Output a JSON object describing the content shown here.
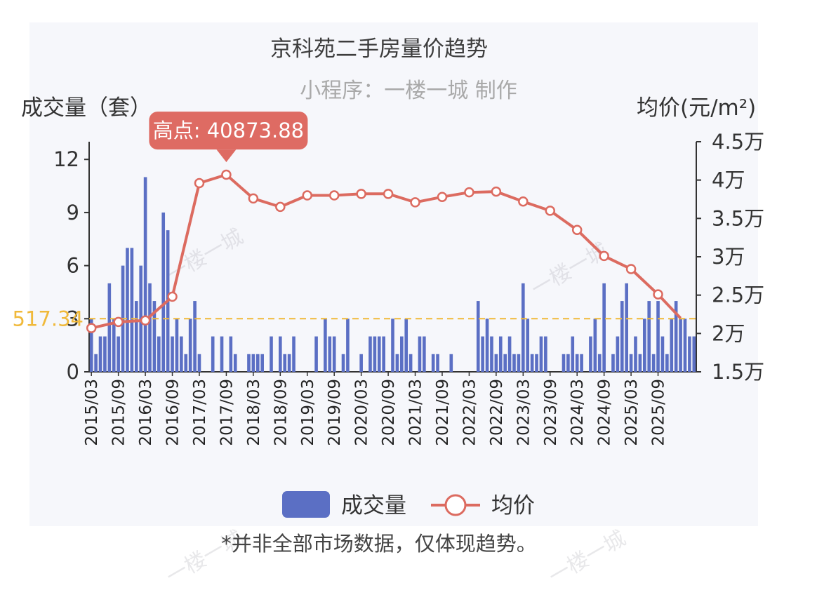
{
  "title": "京科苑二手房量价趋势",
  "subtitle": "小程序：一楼一城 制作",
  "footnote": "*并非全部市场数据，仅体现趋势。",
  "watermark": "一楼一城",
  "colors": {
    "bar": "#5b6fc4",
    "line": "#dc6b60",
    "callout": "#de6b63",
    "refline": "#f0b93a",
    "card": "#f6f7fb"
  },
  "chart_data": {
    "type": "bar+line",
    "title": "京科苑二手房量价趋势",
    "left_axis": {
      "label": "成交量（套）",
      "ticks": [
        0,
        3,
        6,
        9,
        12
      ],
      "ylim": [
        0,
        13
      ]
    },
    "right_axis": {
      "label": "均价(元/m²)",
      "ticks": [
        {
          "value": 15000,
          "label": "1.5万"
        },
        {
          "value": 20000,
          "label": "2万"
        },
        {
          "value": 25000,
          "label": "2.5万"
        },
        {
          "value": 30000,
          "label": "3万"
        },
        {
          "value": 35000,
          "label": "3.5万"
        },
        {
          "value": 40000,
          "label": "4万"
        },
        {
          "value": 45000,
          "label": "4.5万"
        }
      ],
      "ylim": [
        15000,
        45000
      ]
    },
    "x_labels": [
      "2015/03",
      "2015/09",
      "2016/03",
      "2016/09",
      "2017/03",
      "2017/09",
      "2018/03",
      "2018/09",
      "2019/03",
      "2019/09",
      "2020/03",
      "2020/09",
      "2021/03",
      "2021/09",
      "2022/03",
      "2022/09",
      "2023/03",
      "2023/09",
      "2024/03",
      "2024/09",
      "2025/03",
      "2025/09"
    ],
    "label_interval": 6,
    "reference_line": {
      "value": 3,
      "label": "517.34",
      "axis": "left"
    },
    "max_callout": {
      "label": "高点: 40873.88",
      "value": 40873.88
    },
    "series": [
      {
        "name": "成交量",
        "type": "bar",
        "values": [
          3,
          1,
          2,
          2,
          5,
          3,
          2,
          6,
          7,
          7,
          4,
          6,
          11,
          5,
          4,
          2,
          9,
          8,
          2,
          3,
          2,
          1,
          3,
          4,
          1,
          0,
          0,
          2,
          0,
          2,
          0,
          2,
          1,
          0,
          0,
          1,
          1,
          1,
          1,
          0,
          2,
          0,
          2,
          1,
          1,
          2,
          0,
          0,
          0,
          0,
          2,
          0,
          3,
          2,
          2,
          0,
          1,
          3,
          0,
          0,
          1,
          0,
          2,
          2,
          2,
          2,
          0,
          3,
          1,
          2,
          3,
          1,
          0,
          2,
          2,
          0,
          1,
          1,
          0,
          0,
          1,
          0,
          0,
          0,
          0,
          0,
          4,
          2,
          3,
          2,
          1,
          2,
          1,
          2,
          1,
          1,
          5,
          3,
          1,
          1,
          2,
          2,
          0,
          0,
          0,
          1,
          1,
          2,
          1,
          1,
          0,
          2,
          3,
          1,
          5,
          0,
          1,
          2,
          4,
          5,
          1,
          2,
          1,
          3,
          4,
          1,
          4,
          2,
          1,
          3,
          4,
          3,
          3,
          2,
          2
        ]
      },
      {
        "name": "均价",
        "type": "line",
        "points": [
          [
            0,
            20700
          ],
          [
            6,
            21500
          ],
          [
            12,
            21700
          ],
          [
            18,
            24800
          ],
          [
            24,
            39600
          ],
          [
            30,
            40700
          ],
          [
            36,
            37600
          ],
          [
            42,
            36500
          ],
          [
            48,
            38000
          ],
          [
            54,
            38000
          ],
          [
            60,
            38200
          ],
          [
            66,
            38200
          ],
          [
            72,
            37100
          ],
          [
            78,
            37800
          ],
          [
            84,
            38400
          ],
          [
            90,
            38500
          ],
          [
            96,
            37200
          ],
          [
            102,
            36000
          ],
          [
            108,
            33500
          ],
          [
            114,
            30100
          ],
          [
            120,
            28400
          ],
          [
            126,
            25100
          ],
          [
            131,
            22000
          ]
        ],
        "markers": [
          0,
          6,
          12,
          18,
          24,
          30,
          36,
          42,
          48,
          54,
          60,
          66,
          72,
          78,
          84,
          90,
          96,
          102,
          108,
          114,
          120,
          126
        ]
      }
    ],
    "legend": [
      "成交量",
      "均价"
    ]
  }
}
